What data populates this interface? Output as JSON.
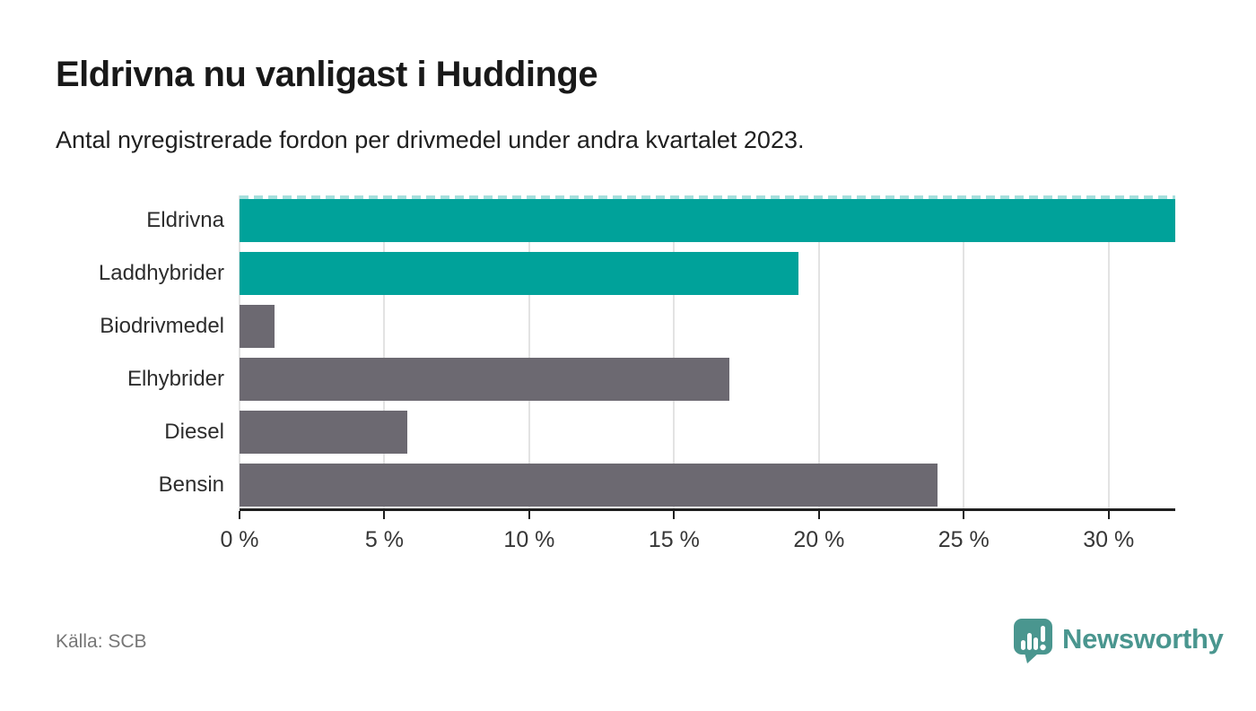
{
  "header": {
    "title": "Eldrivna nu vanligast i Huddinge",
    "subtitle": "Antal nyregistrerade fordon per drivmedel under andra kvartalet 2023."
  },
  "chart_data": {
    "type": "bar",
    "orientation": "horizontal",
    "categories": [
      "Eldrivna",
      "Laddhybrider",
      "Biodrivmedel",
      "Elhybrider",
      "Diesel",
      "Bensin"
    ],
    "values": [
      32.4,
      19.3,
      1.2,
      16.9,
      5.8,
      24.1
    ],
    "highlight": [
      true,
      true,
      false,
      false,
      false,
      false
    ],
    "colors": {
      "highlight": "#00a29a",
      "default": "#6c6971"
    },
    "truncated_bar": "Eldrivna",
    "truncation_dash_color": "#a5dfdc",
    "xlim": [
      0,
      32.3
    ],
    "xticks": {
      "values": [
        0,
        5,
        10,
        15,
        20,
        25,
        30
      ],
      "labels": [
        "0 %",
        "5 %",
        "10 %",
        "15 %",
        "20 %",
        "25 %",
        "30 %"
      ]
    },
    "unit": "%",
    "grid": true,
    "gridline_color": "#e3e3e3",
    "axis_color": "#1f1f1f"
  },
  "footer": {
    "source": "Källa: SCB",
    "brand": "Newsworthy",
    "brand_color": "#4a968f",
    "logo_icon": "newsworthy-speech-bubble-chart-icon"
  }
}
